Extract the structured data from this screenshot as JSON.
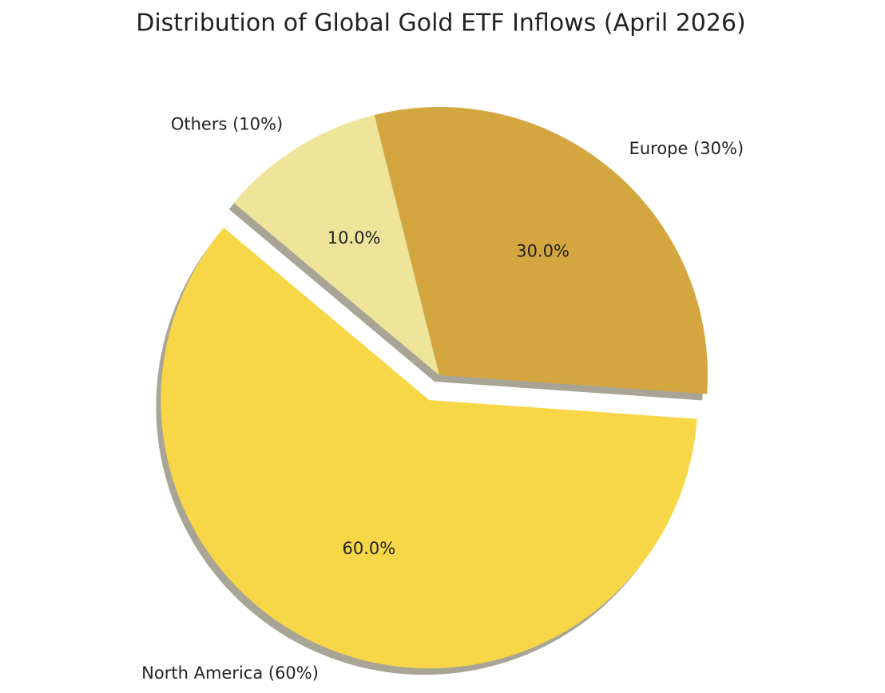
{
  "chart_data": {
    "type": "pie",
    "title": "Distribution of Global Gold ETF Inflows (April 2026)",
    "categories": [
      "North America (60%)",
      "Europe (30%)",
      "Others (10%)"
    ],
    "values": [
      60,
      30,
      10
    ],
    "value_labels": [
      "60.0%",
      "30.0%",
      "10.0%"
    ],
    "colors": [
      "#f7d748",
      "#d4a640",
      "#eee59a"
    ],
    "shadow": true
  }
}
